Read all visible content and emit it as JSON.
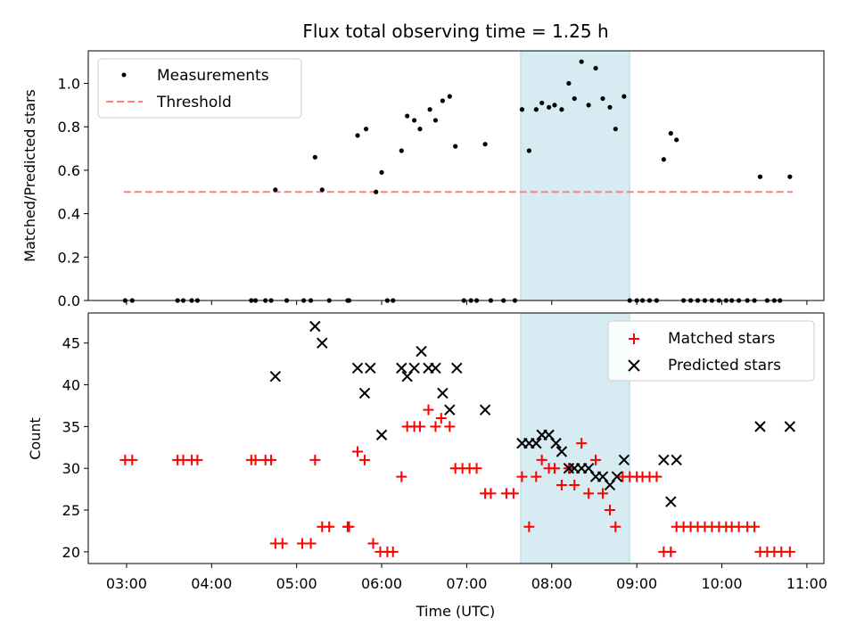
{
  "chart_data": [
    {
      "type": "scatter",
      "title": "Flux total observing time = 1.25 h",
      "xlabel": "",
      "ylabel": "Matched/Predicted stars",
      "ylim": [
        0,
        1.15
      ],
      "yticks": [
        "0.0",
        "0.2",
        "0.4",
        "0.6",
        "0.8",
        "1.0"
      ],
      "xlim": [
        "02:33",
        "11:12"
      ],
      "shaded_interval": [
        "07:38",
        "08:55"
      ],
      "shaded_color": "#add8e6",
      "legend_position": "upper-left",
      "threshold": {
        "name": "Threshold",
        "value": 0.5,
        "x_range": [
          "02:58",
          "10:50"
        ],
        "color": "#ff7f7f",
        "style": "dashed"
      },
      "series": [
        {
          "name": "Measurements",
          "color": "#000000",
          "marker": "dot",
          "points": [
            [
              "02:59",
              0
            ],
            [
              "03:04",
              0
            ],
            [
              "03:36",
              0
            ],
            [
              "03:40",
              0
            ],
            [
              "03:46",
              0
            ],
            [
              "03:50",
              0
            ],
            [
              "04:28",
              0
            ],
            [
              "04:31",
              0
            ],
            [
              "04:38",
              0
            ],
            [
              "04:42",
              0
            ],
            [
              "04:45",
              0.51
            ],
            [
              "04:53",
              0
            ],
            [
              "05:05",
              0
            ],
            [
              "05:10",
              0
            ],
            [
              "05:13",
              0.66
            ],
            [
              "05:18",
              0.51
            ],
            [
              "05:23",
              0
            ],
            [
              "05:36",
              0
            ],
            [
              "05:37",
              0
            ],
            [
              "05:43",
              0.76
            ],
            [
              "05:49",
              0.79
            ],
            [
              "05:56",
              0.5
            ],
            [
              "06:00",
              0.59
            ],
            [
              "06:04",
              0
            ],
            [
              "06:08",
              0
            ],
            [
              "06:14",
              0.69
            ],
            [
              "06:18",
              0.85
            ],
            [
              "06:23",
              0.83
            ],
            [
              "06:27",
              0.79
            ],
            [
              "06:34",
              0.88
            ],
            [
              "06:38",
              0.83
            ],
            [
              "06:43",
              0.92
            ],
            [
              "06:48",
              0.94
            ],
            [
              "06:52",
              0.71
            ],
            [
              "06:58",
              0
            ],
            [
              "07:03",
              0
            ],
            [
              "07:07",
              0
            ],
            [
              "07:13",
              0.72
            ],
            [
              "07:17",
              0
            ],
            [
              "07:26",
              0
            ],
            [
              "07:34",
              0
            ],
            [
              "07:39",
              0.88
            ],
            [
              "07:44",
              0.69
            ],
            [
              "07:49",
              0.88
            ],
            [
              "07:53",
              0.91
            ],
            [
              "07:58",
              0.89
            ],
            [
              "08:02",
              0.9
            ],
            [
              "08:07",
              0.88
            ],
            [
              "08:12",
              1.0
            ],
            [
              "08:16",
              0.93
            ],
            [
              "08:21",
              1.1
            ],
            [
              "08:26",
              0.9
            ],
            [
              "08:31",
              1.07
            ],
            [
              "08:36",
              0.93
            ],
            [
              "08:41",
              0.89
            ],
            [
              "08:45",
              0.79
            ],
            [
              "08:51",
              0.94
            ],
            [
              "08:55",
              0
            ],
            [
              "09:00",
              0
            ],
            [
              "09:04",
              0
            ],
            [
              "09:09",
              0
            ],
            [
              "09:14",
              0
            ],
            [
              "09:19",
              0.65
            ],
            [
              "09:24",
              0.77
            ],
            [
              "09:28",
              0.74
            ],
            [
              "09:33",
              0
            ],
            [
              "09:38",
              0
            ],
            [
              "09:43",
              0
            ],
            [
              "09:48",
              0
            ],
            [
              "09:53",
              0
            ],
            [
              "09:58",
              0
            ],
            [
              "10:03",
              0
            ],
            [
              "10:07",
              0
            ],
            [
              "10:12",
              0
            ],
            [
              "10:18",
              0
            ],
            [
              "10:23",
              0
            ],
            [
              "10:27",
              0.57
            ],
            [
              "10:32",
              0
            ],
            [
              "10:37",
              0
            ],
            [
              "10:41",
              0
            ],
            [
              "10:48",
              0.57
            ]
          ]
        }
      ]
    },
    {
      "type": "scatter",
      "title": "",
      "xlabel": "Time (UTC)",
      "ylabel": "Count",
      "ylim": [
        18.6,
        48.6
      ],
      "yticks": [
        "20",
        "25",
        "30",
        "35",
        "40",
        "45"
      ],
      "xticks": [
        "03:00",
        "04:00",
        "05:00",
        "06:00",
        "07:00",
        "08:00",
        "09:00",
        "10:00",
        "11:00"
      ],
      "xlim": [
        "02:33",
        "11:12"
      ],
      "shaded_interval": [
        "07:38",
        "08:55"
      ],
      "shaded_color": "#add8e6",
      "legend_position": "upper-right",
      "series": [
        {
          "name": "Matched stars",
          "color": "#ff0000",
          "marker": "plus",
          "points": [
            [
              "02:59",
              31
            ],
            [
              "03:04",
              31
            ],
            [
              "03:36",
              31
            ],
            [
              "03:40",
              31
            ],
            [
              "03:46",
              31
            ],
            [
              "03:50",
              31
            ],
            [
              "04:28",
              31
            ],
            [
              "04:31",
              31
            ],
            [
              "04:38",
              31
            ],
            [
              "04:42",
              31
            ],
            [
              "04:45",
              21
            ],
            [
              "04:50",
              21
            ],
            [
              "05:04",
              21
            ],
            [
              "05:10",
              21
            ],
            [
              "05:13",
              31
            ],
            [
              "05:18",
              23
            ],
            [
              "05:23",
              23
            ],
            [
              "05:36",
              23
            ],
            [
              "05:37",
              23
            ],
            [
              "05:43",
              32
            ],
            [
              "05:48",
              31
            ],
            [
              "05:54",
              21
            ],
            [
              "05:59",
              20
            ],
            [
              "06:04",
              20
            ],
            [
              "06:08",
              20
            ],
            [
              "06:14",
              29
            ],
            [
              "06:18",
              35
            ],
            [
              "06:23",
              35
            ],
            [
              "06:27",
              35
            ],
            [
              "06:33",
              37
            ],
            [
              "06:38",
              35
            ],
            [
              "06:42",
              36
            ],
            [
              "06:48",
              35
            ],
            [
              "06:52",
              30
            ],
            [
              "06:57",
              30
            ],
            [
              "07:02",
              30
            ],
            [
              "07:07",
              30
            ],
            [
              "07:13",
              27
            ],
            [
              "07:17",
              27
            ],
            [
              "07:28",
              27
            ],
            [
              "07:33",
              27
            ],
            [
              "07:39",
              29
            ],
            [
              "07:44",
              23
            ],
            [
              "07:49",
              29
            ],
            [
              "07:53",
              31
            ],
            [
              "07:58",
              30
            ],
            [
              "08:02",
              30
            ],
            [
              "08:07",
              28
            ],
            [
              "08:12",
              30
            ],
            [
              "08:16",
              28
            ],
            [
              "08:21",
              33
            ],
            [
              "08:26",
              27
            ],
            [
              "08:31",
              31
            ],
            [
              "08:36",
              27
            ],
            [
              "08:41",
              25
            ],
            [
              "08:45",
              23
            ],
            [
              "08:50",
              29
            ],
            [
              "08:55",
              29
            ],
            [
              "09:00",
              29
            ],
            [
              "09:04",
              29
            ],
            [
              "09:09",
              29
            ],
            [
              "09:14",
              29
            ],
            [
              "09:19",
              20
            ],
            [
              "09:24",
              20
            ],
            [
              "09:28",
              23
            ],
            [
              "09:33",
              23
            ],
            [
              "09:38",
              23
            ],
            [
              "09:43",
              23
            ],
            [
              "09:48",
              23
            ],
            [
              "09:53",
              23
            ],
            [
              "09:58",
              23
            ],
            [
              "10:03",
              23
            ],
            [
              "10:07",
              23
            ],
            [
              "10:12",
              23
            ],
            [
              "10:18",
              23
            ],
            [
              "10:23",
              23
            ],
            [
              "10:27",
              20
            ],
            [
              "10:32",
              20
            ],
            [
              "10:37",
              20
            ],
            [
              "10:42",
              20
            ],
            [
              "10:48",
              20
            ]
          ]
        },
        {
          "name": "Predicted stars",
          "color": "#000000",
          "marker": "x",
          "points": [
            [
              "04:45",
              41
            ],
            [
              "05:13",
              47
            ],
            [
              "05:18",
              45
            ],
            [
              "05:43",
              42
            ],
            [
              "05:48",
              39
            ],
            [
              "05:52",
              42
            ],
            [
              "06:00",
              34
            ],
            [
              "06:14",
              42
            ],
            [
              "06:18",
              41
            ],
            [
              "06:23",
              42
            ],
            [
              "06:28",
              44
            ],
            [
              "06:33",
              42
            ],
            [
              "06:38",
              42
            ],
            [
              "06:43",
              39
            ],
            [
              "06:48",
              37
            ],
            [
              "06:53",
              42
            ],
            [
              "07:13",
              37
            ],
            [
              "07:39",
              33
            ],
            [
              "07:44",
              33
            ],
            [
              "07:49",
              33
            ],
            [
              "07:53",
              34
            ],
            [
              "07:58",
              34
            ],
            [
              "08:03",
              33
            ],
            [
              "08:07",
              32
            ],
            [
              "08:12",
              30
            ],
            [
              "08:16",
              30
            ],
            [
              "08:21",
              30
            ],
            [
              "08:26",
              30
            ],
            [
              "08:31",
              29
            ],
            [
              "08:36",
              29
            ],
            [
              "08:41",
              28
            ],
            [
              "08:46",
              29
            ],
            [
              "08:51",
              31
            ],
            [
              "09:19",
              31
            ],
            [
              "09:24",
              26
            ],
            [
              "09:28",
              31
            ],
            [
              "10:27",
              35
            ],
            [
              "10:48",
              35
            ]
          ]
        }
      ]
    }
  ]
}
